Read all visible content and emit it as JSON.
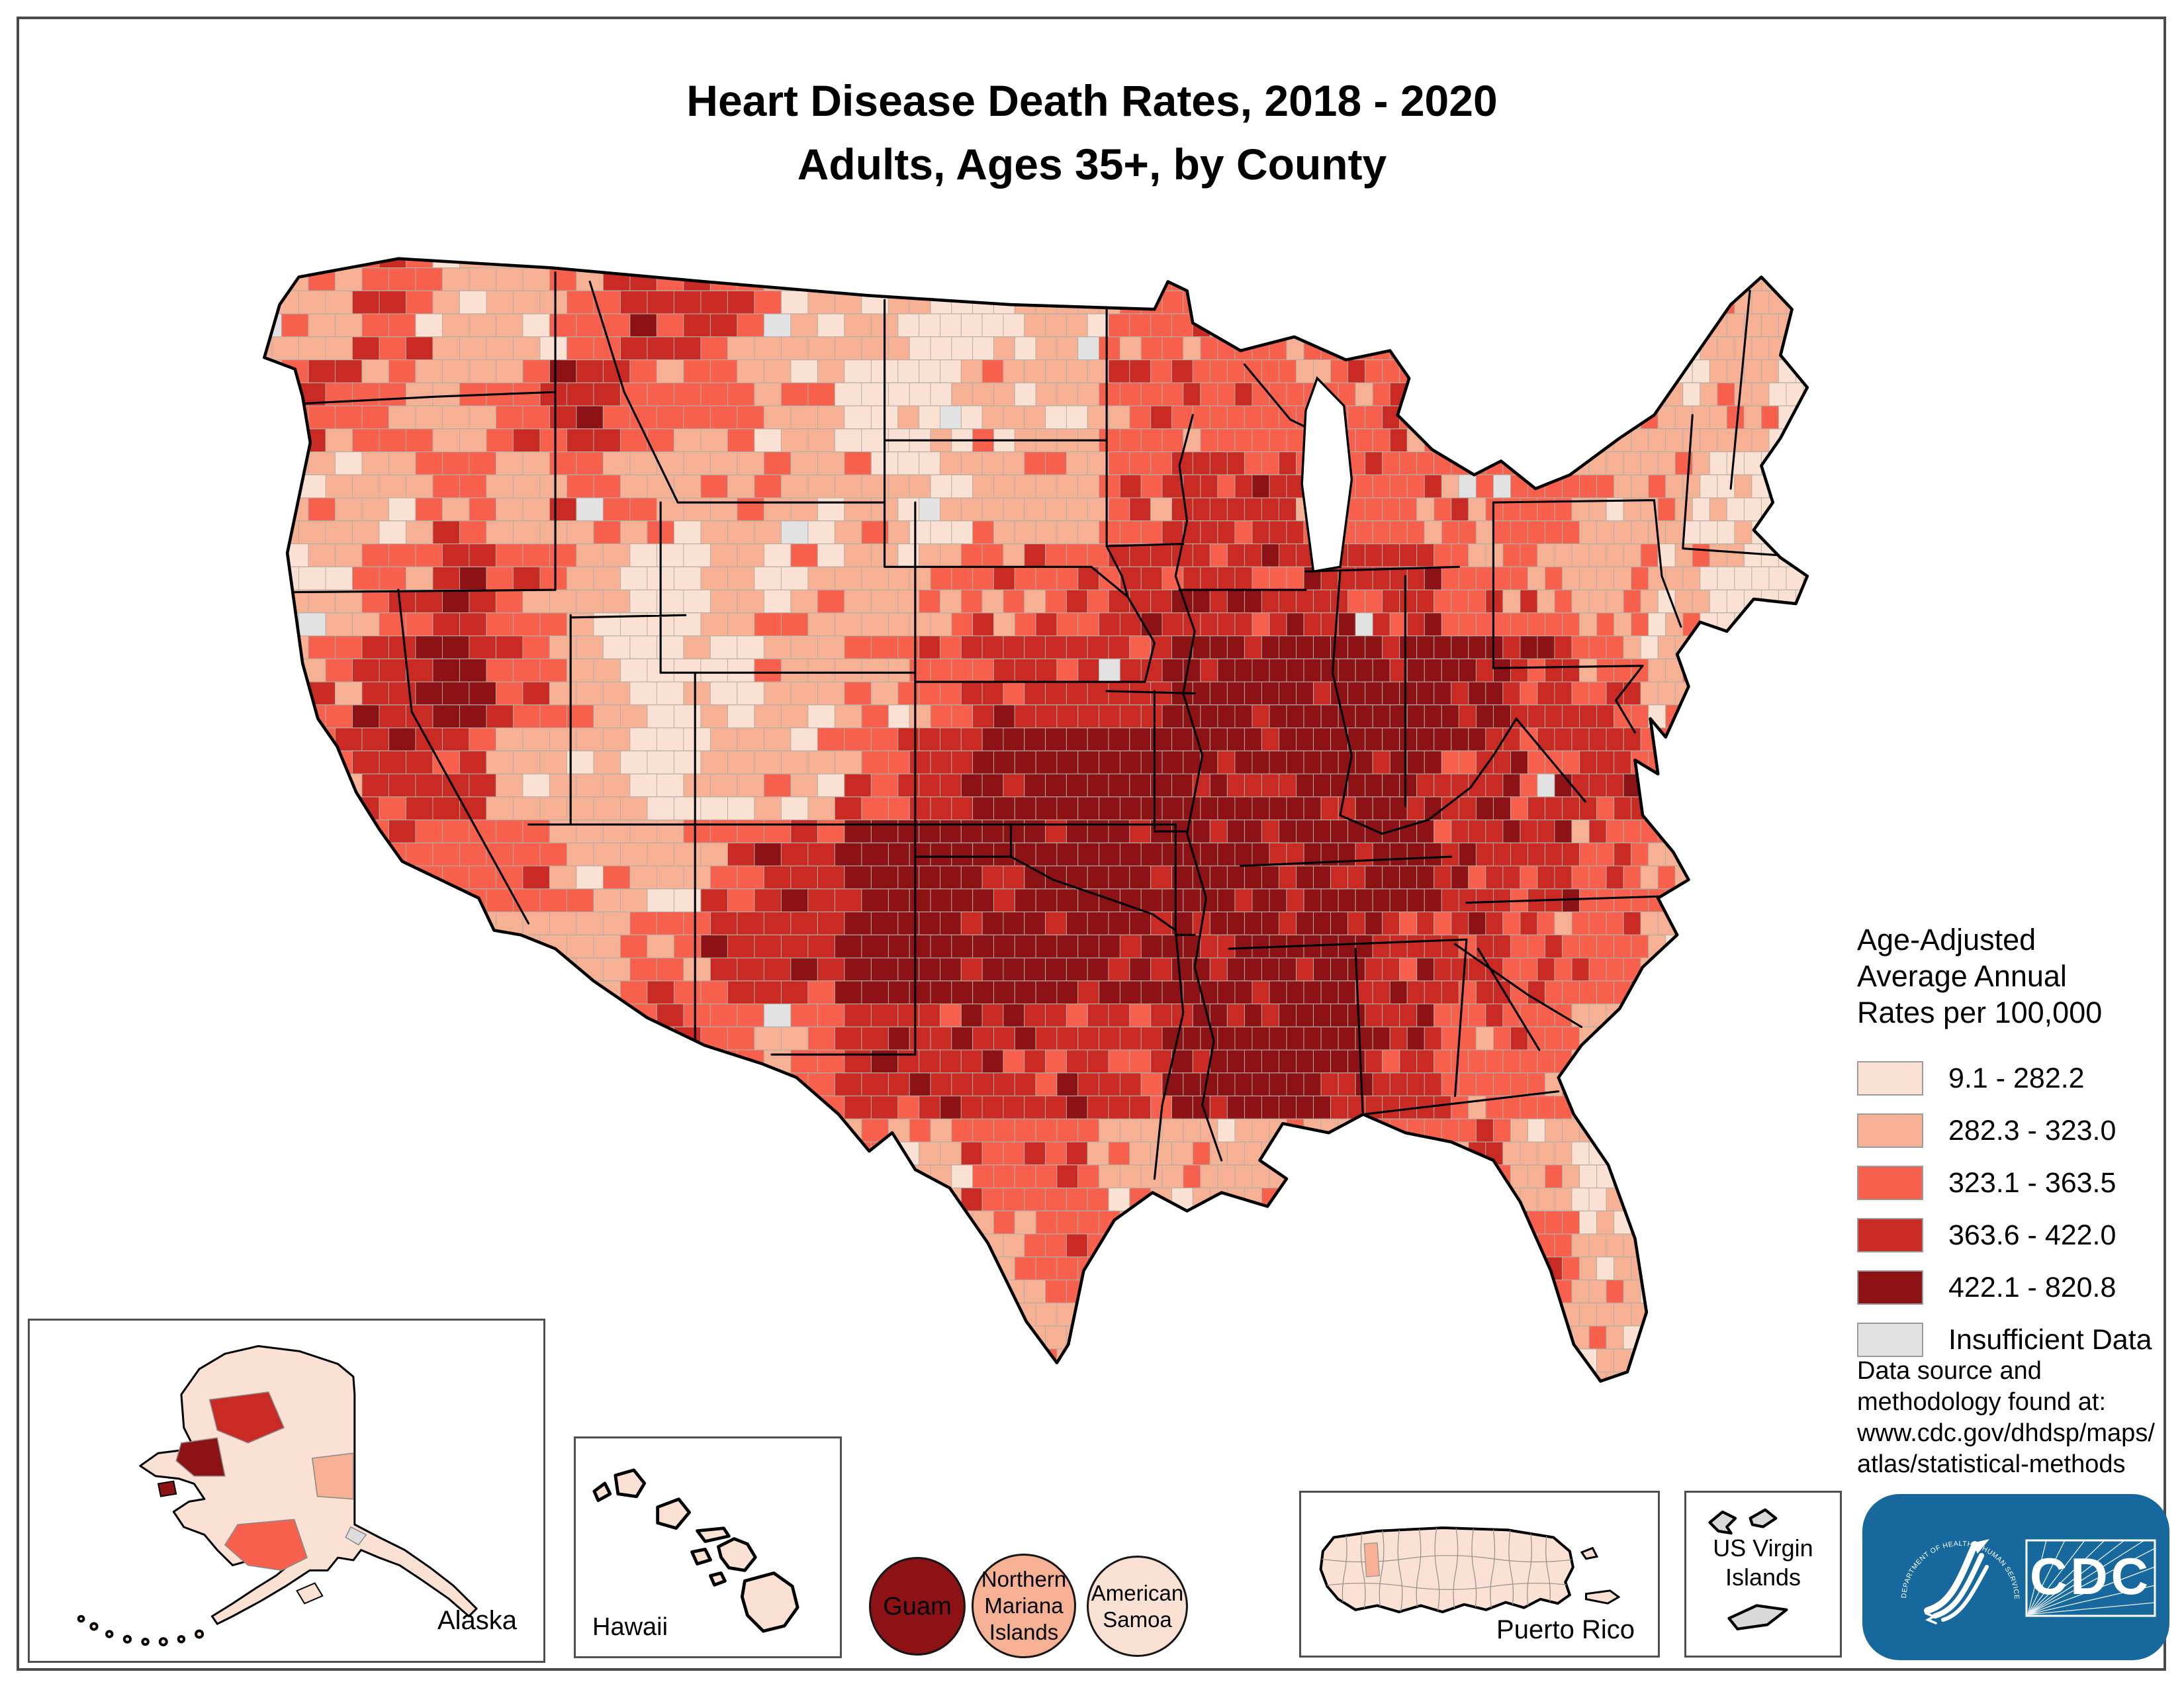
{
  "title": {
    "line1": "Heart Disease Death Rates, 2018 - 2020",
    "line2": "Adults, Ages 35+, by County"
  },
  "legend": {
    "title": "Age-Adjusted\nAverage Annual\nRates per 100,000",
    "classes": [
      {
        "label": "9.1 - 282.2",
        "color": "#fae1d3"
      },
      {
        "label": "282.3 - 323.0",
        "color": "#f6b194"
      },
      {
        "label": "323.1 - 363.5",
        "color": "#f6604c"
      },
      {
        "label": "363.6 - 422.0",
        "color": "#c92a23"
      },
      {
        "label": "422.1 - 820.8",
        "color": "#8c1216"
      }
    ],
    "insufficient": {
      "label": "Insufficient Data",
      "color": "#e2e2e2"
    }
  },
  "source_note": "Data source and\nmethodology found at:\nwww.cdc.gov/dhdsp/maps/\natlas/statistical-methods",
  "map": {
    "class_colors": [
      "#fae1d3",
      "#f6b194",
      "#f6604c",
      "#c92a23",
      "#8c1216"
    ],
    "insufficient_color": "#e2e2e2",
    "county_line_color": "#b3aea6",
    "state_line_color": "#000000",
    "outline_color": "#000000",
    "water_color": "#ffffff",
    "intensity_grid": [
      "112112321100122222112111",
      "122123221001122222221110",
      "111212111101123322221100",
      "012321011112233333221100",
      "123421001123334444432100",
      "123311011234444444333210",
      "122221123444444444332210",
      "011111233444444443322100",
      "000111222333334443221000",
      "000001122212211112210000",
      "000000011111210000121000",
      "000000000001110000011100"
    ]
  },
  "insets": {
    "alaska": {
      "label": "Alaska"
    },
    "hawaii": {
      "label": "Hawaii"
    },
    "guam": {
      "label": "Guam",
      "class_index": 4
    },
    "northern_mariana_islands": {
      "label": "Northern Mariana Islands",
      "class_index": 1
    },
    "american_samoa": {
      "label": "American Samoa",
      "class_index": 0
    },
    "puerto_rico": {
      "label": "Puerto Rico"
    },
    "us_virgin_islands": {
      "label": "US Virgin Islands"
    }
  },
  "cdc_logo": {
    "arc_text": "DEPARTMENT OF HEALTH & HUMAN SERVICES · USA",
    "acronym": "CDC",
    "blue": "#17699d"
  }
}
